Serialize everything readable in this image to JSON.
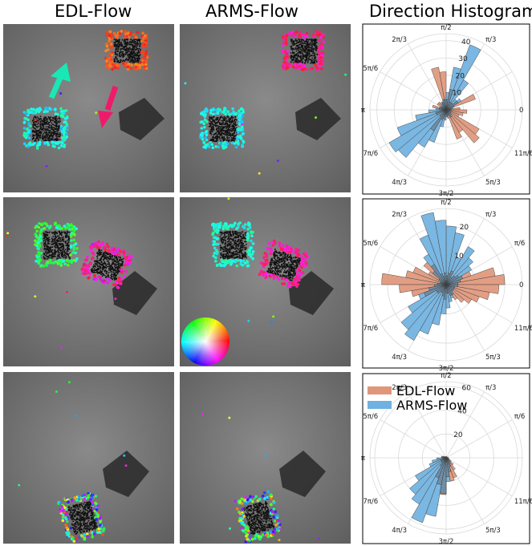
{
  "column_titles": [
    "EDL-Flow",
    "ARMS-Flow",
    "Direction Histogram"
  ],
  "legend": [
    "EDL-Flow",
    "ARMS-Flow"
  ],
  "colors": {
    "EDL-Flow": "#e0967a",
    "ARMS-Flow": "#6fb1e0",
    "overlap": "#6f8ea6"
  },
  "chart_data": [
    {
      "type": "polar-bar",
      "angle_tick_labels": [
        "0",
        "π/3",
        "π/2",
        "2π/3",
        "5π/6",
        "π",
        "7π/6",
        "4π/3",
        "3π/2",
        "5π/3",
        "11π/6"
      ],
      "radial_ticks": [
        10,
        20,
        30,
        40
      ],
      "rmax": 44,
      "bins": 36,
      "series": [
        {
          "name": "EDL-Flow",
          "values": [
            8,
            3,
            18,
            8,
            5,
            5,
            5,
            12,
            6,
            22,
            25,
            5,
            5,
            6,
            6,
            4,
            8,
            4,
            3,
            6,
            6,
            2,
            5,
            14,
            6,
            5,
            3,
            4,
            5,
            18,
            15,
            25,
            22,
            8,
            10,
            12
          ]
        },
        {
          "name": "ARMS-Flow",
          "values": [
            3,
            4,
            5,
            10,
            8,
            20,
            40,
            25,
            10,
            6,
            6,
            5,
            4,
            3,
            3,
            3,
            4,
            6,
            10,
            18,
            30,
            38,
            36,
            25,
            20,
            10,
            6,
            4,
            3,
            3,
            5,
            4,
            3,
            2,
            2,
            3
          ]
        }
      ]
    },
    {
      "type": "polar-bar",
      "angle_tick_labels": [
        "0",
        "π/6",
        "π/3",
        "π/2",
        "2π/3",
        "5π/6",
        "π",
        "7π/6",
        "4π/3",
        "3π/2",
        "5π/3",
        "11π/6"
      ],
      "radial_ticks": [
        10,
        20
      ],
      "rmax": 26,
      "bins": 36,
      "series": [
        {
          "name": "EDL-Flow",
          "values": [
            20,
            17,
            9,
            5,
            4,
            3,
            5,
            4,
            3,
            4,
            3,
            4,
            8,
            10,
            7,
            12,
            14,
            22,
            16,
            12,
            8,
            4,
            4,
            3,
            3,
            4,
            5,
            3,
            3,
            4,
            6,
            8,
            10,
            12,
            15,
            18
          ]
        },
        {
          "name": "ARMS-Flow",
          "values": [
            4,
            5,
            6,
            10,
            12,
            15,
            10,
            18,
            20,
            22,
            25,
            18,
            12,
            6,
            3,
            2,
            2,
            3,
            4,
            6,
            10,
            15,
            20,
            22,
            18,
            14,
            10,
            8,
            6,
            5,
            4,
            3,
            3,
            3,
            3,
            4
          ]
        }
      ]
    },
    {
      "type": "polar-bar",
      "angle_tick_labels": [
        "π/6",
        "π/3",
        "π/2",
        "2π/3",
        "5π/6",
        "π",
        "7π/6",
        "4π/3",
        "3π/2",
        "5π/3",
        "11π/6"
      ],
      "radial_ticks": [
        20,
        40,
        60
      ],
      "rmax": 64,
      "bins": 36,
      "series": [
        {
          "name": "EDL-Flow",
          "values": [
            2,
            1,
            1,
            1,
            1,
            1,
            1,
            1,
            1,
            1,
            1,
            1,
            1,
            1,
            2,
            3,
            4,
            2,
            2,
            3,
            5,
            5,
            5,
            8,
            18,
            23,
            31,
            16,
            20,
            18,
            12,
            8,
            5,
            3,
            2,
            2
          ]
        },
        {
          "name": "ARMS-Flow",
          "values": [
            1,
            1,
            1,
            1,
            1,
            1,
            1,
            1,
            1,
            1,
            1,
            1,
            1,
            1,
            1,
            1,
            2,
            4,
            8,
            12,
            15,
            30,
            40,
            45,
            58,
            50,
            30,
            20,
            12,
            8,
            6,
            4,
            3,
            2,
            2,
            1
          ]
        }
      ]
    }
  ]
}
